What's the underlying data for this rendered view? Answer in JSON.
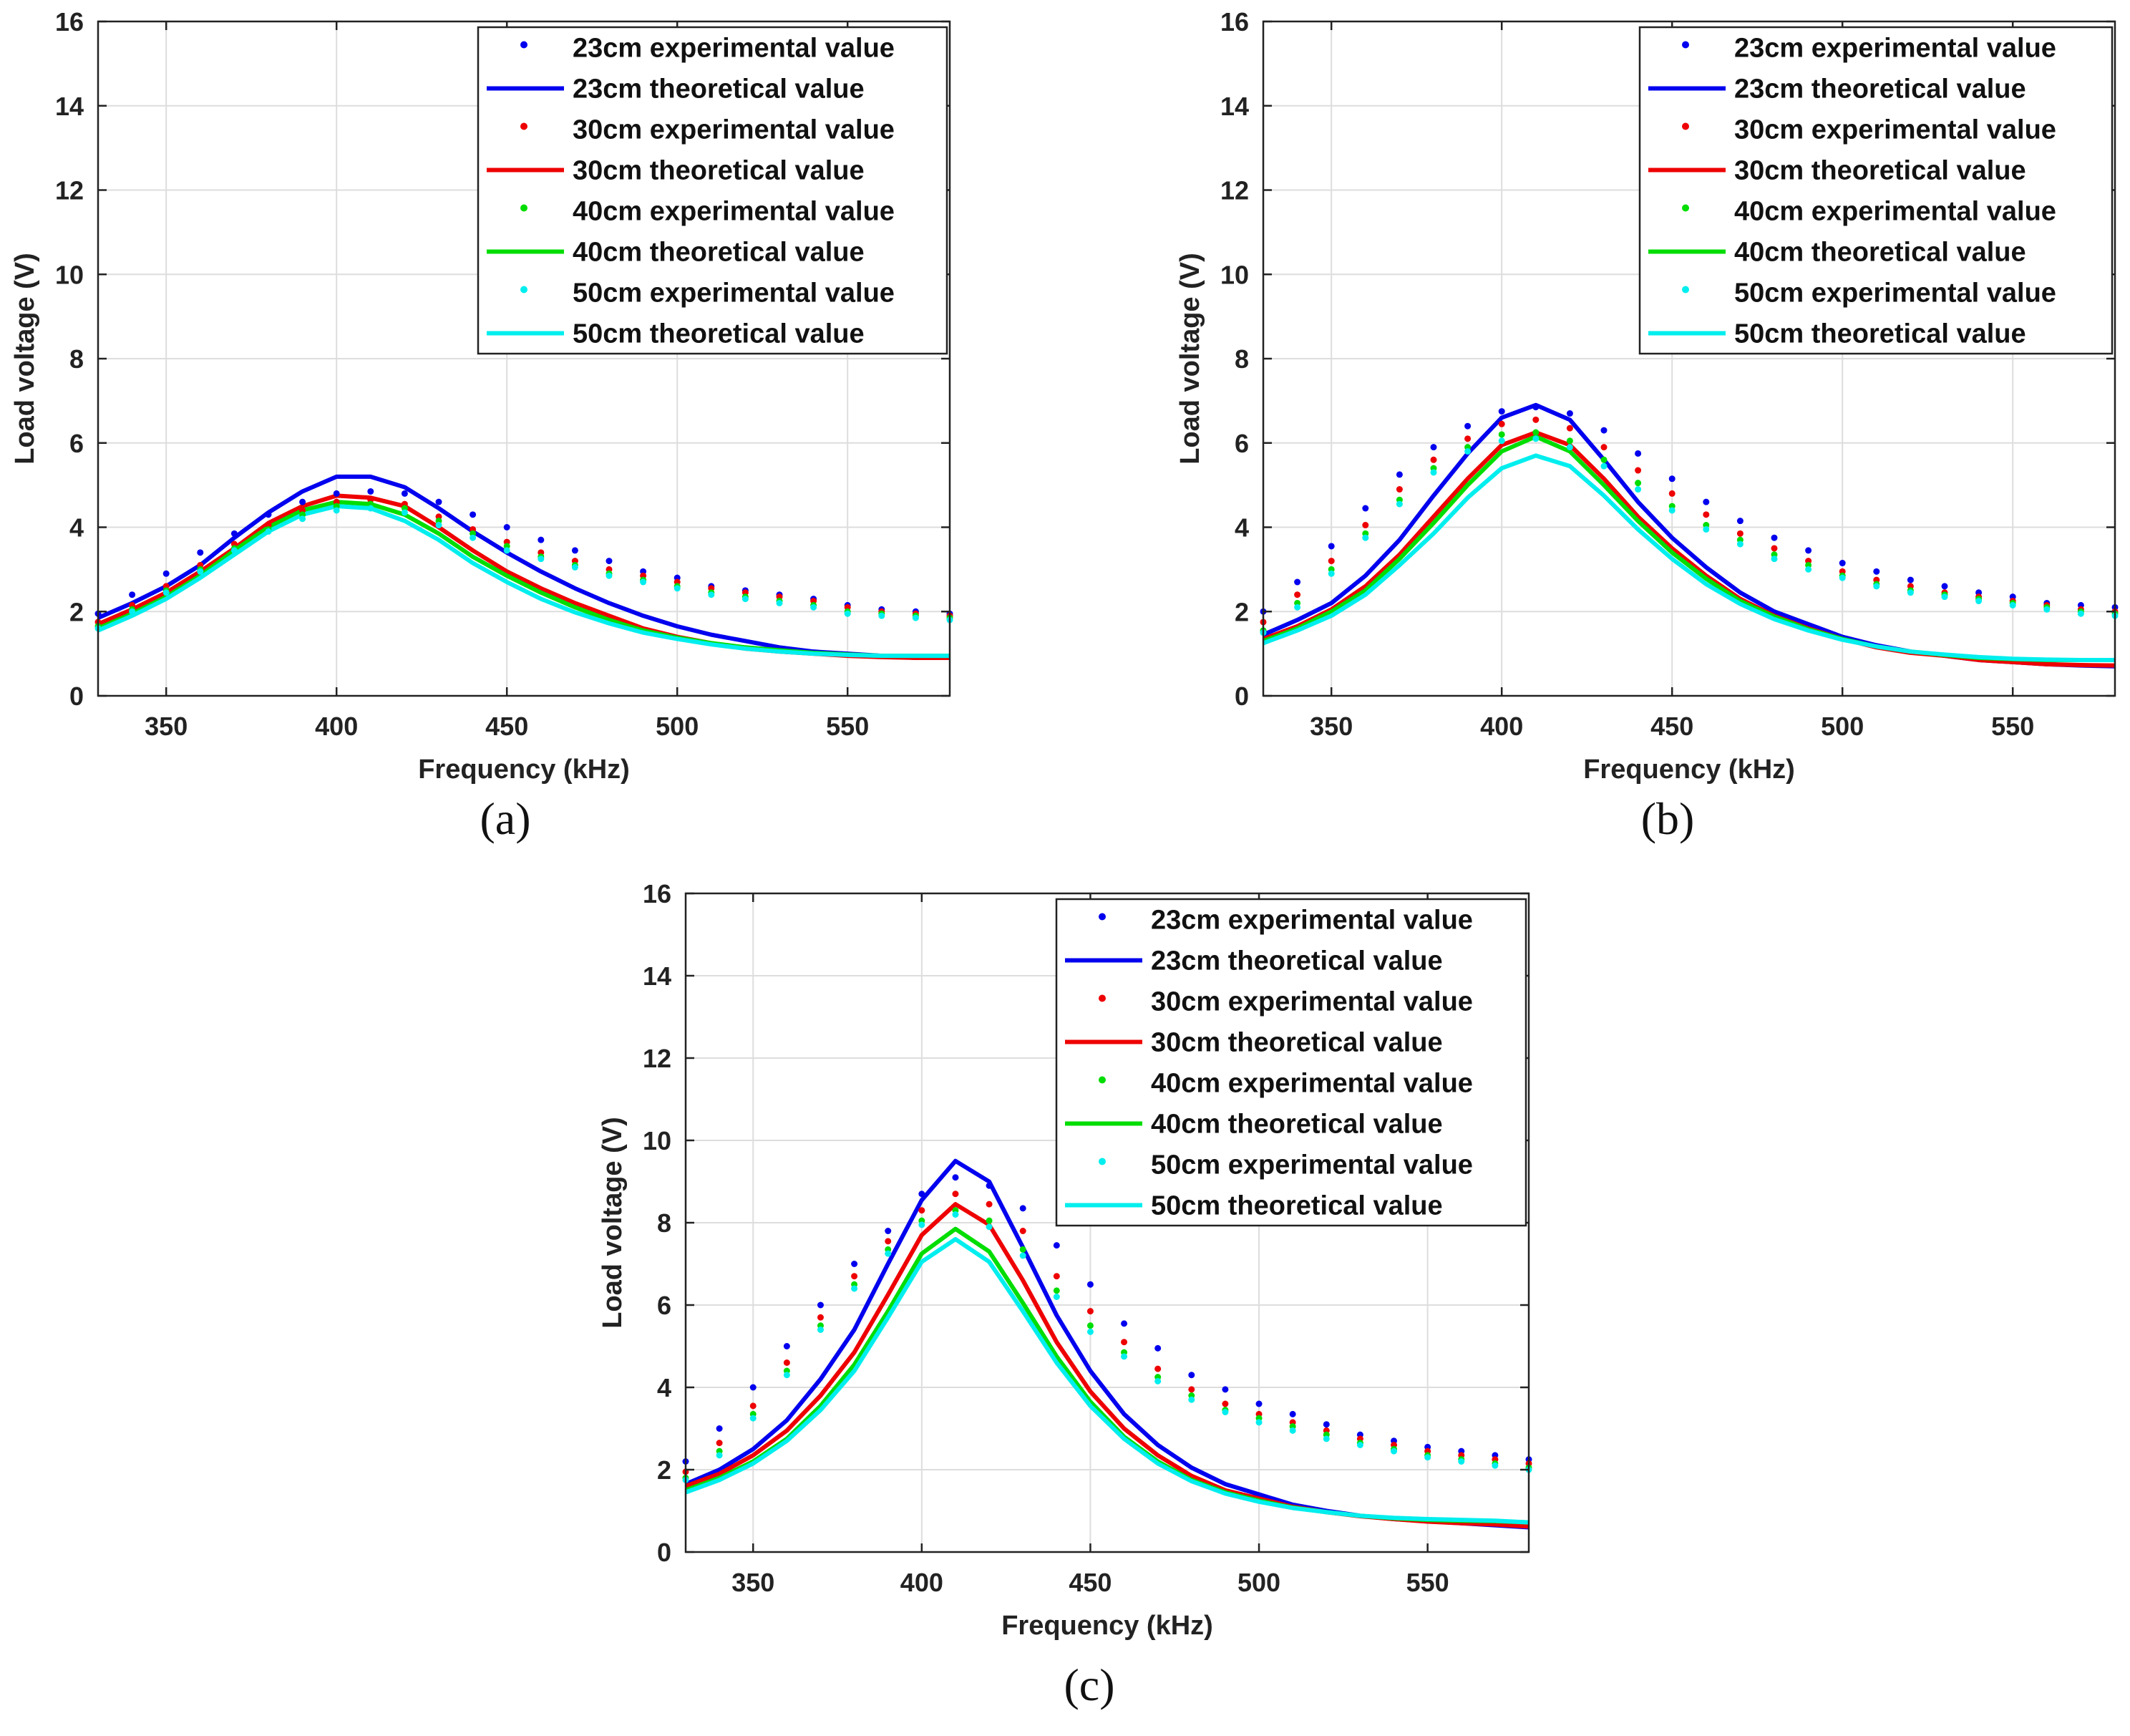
{
  "colors": {
    "23cm": "#0000ee",
    "30cm": "#ee0000",
    "40cm": "#00dd00",
    "50cm": "#00eeee",
    "grid": "#dddddd",
    "axis": "#222222"
  },
  "chart_data": [
    {
      "type": "line",
      "panel_label": "(a)",
      "xlabel": "Frequency (kHz)",
      "ylabel": "Load voltage (V)",
      "xlim": [
        330,
        580
      ],
      "ylim": [
        0,
        16
      ],
      "xticks": [
        "350",
        "400",
        "450",
        "500",
        "550"
      ],
      "yticks": [
        "0",
        "2",
        "4",
        "6",
        "8",
        "10",
        "12",
        "14",
        "16"
      ],
      "grid": true,
      "legend_position": "top-right",
      "legend": [
        "23cm experimental value",
        "23cm theoretical value",
        "30cm experimental value",
        "30cm theoretical value",
        "40cm experimental value",
        "40cm theoretical value",
        "50cm experimental value",
        "50cm theoretical value"
      ],
      "x": [
        330,
        340,
        350,
        360,
        370,
        380,
        390,
        400,
        410,
        420,
        430,
        440,
        450,
        460,
        470,
        480,
        490,
        500,
        510,
        520,
        530,
        540,
        550,
        560,
        570,
        580
      ],
      "series": [
        {
          "name": "23cm experimental value",
          "kind": "points",
          "color_key": "23cm",
          "values": [
            1.95,
            2.4,
            2.9,
            3.4,
            3.85,
            4.3,
            4.6,
            4.8,
            4.85,
            4.8,
            4.6,
            4.3,
            4.0,
            3.7,
            3.45,
            3.2,
            2.95,
            2.8,
            2.6,
            2.5,
            2.4,
            2.3,
            2.15,
            2.05,
            2.0,
            1.95
          ]
        },
        {
          "name": "23cm theoretical value",
          "kind": "line",
          "color_key": "23cm",
          "values": [
            1.85,
            2.2,
            2.6,
            3.1,
            3.75,
            4.35,
            4.85,
            5.2,
            5.2,
            4.95,
            4.45,
            3.9,
            3.4,
            2.95,
            2.55,
            2.2,
            1.9,
            1.65,
            1.45,
            1.3,
            1.15,
            1.05,
            1.0,
            0.95,
            0.9,
            0.9
          ]
        },
        {
          "name": "30cm experimental value",
          "kind": "points",
          "color_key": "30cm",
          "values": [
            1.75,
            2.15,
            2.6,
            3.1,
            3.6,
            4.05,
            4.4,
            4.6,
            4.65,
            4.55,
            4.25,
            3.95,
            3.65,
            3.4,
            3.2,
            3.0,
            2.85,
            2.7,
            2.55,
            2.45,
            2.35,
            2.25,
            2.1,
            2.0,
            1.95,
            1.9
          ]
        },
        {
          "name": "30cm theoretical value",
          "kind": "line",
          "color_key": "30cm",
          "values": [
            1.7,
            2.05,
            2.45,
            2.95,
            3.5,
            4.1,
            4.5,
            4.75,
            4.7,
            4.5,
            4.0,
            3.45,
            2.95,
            2.55,
            2.2,
            1.9,
            1.6,
            1.4,
            1.25,
            1.12,
            1.05,
            1.0,
            0.95,
            0.92,
            0.9,
            0.9
          ]
        },
        {
          "name": "40cm experimental value",
          "kind": "points",
          "color_key": "40cm",
          "values": [
            1.65,
            2.05,
            2.5,
            3.0,
            3.5,
            3.95,
            4.3,
            4.5,
            4.55,
            4.45,
            4.15,
            3.85,
            3.55,
            3.3,
            3.1,
            2.9,
            2.75,
            2.6,
            2.45,
            2.35,
            2.25,
            2.15,
            2.0,
            1.95,
            1.9,
            1.85
          ]
        },
        {
          "name": "40cm theoretical value",
          "kind": "line",
          "color_key": "40cm",
          "values": [
            1.6,
            1.95,
            2.35,
            2.85,
            3.45,
            4.0,
            4.4,
            4.6,
            4.55,
            4.3,
            3.85,
            3.3,
            2.85,
            2.45,
            2.1,
            1.8,
            1.55,
            1.38,
            1.25,
            1.15,
            1.08,
            1.02,
            0.98,
            0.95,
            0.95,
            0.95
          ]
        },
        {
          "name": "50cm experimental value",
          "kind": "points",
          "color_key": "50cm",
          "values": [
            1.6,
            2.0,
            2.45,
            2.95,
            3.45,
            3.9,
            4.2,
            4.4,
            4.45,
            4.35,
            4.05,
            3.75,
            3.45,
            3.25,
            3.05,
            2.85,
            2.7,
            2.55,
            2.4,
            2.3,
            2.2,
            2.1,
            1.95,
            1.9,
            1.85,
            1.8
          ]
        },
        {
          "name": "50cm theoretical value",
          "kind": "line",
          "color_key": "50cm",
          "values": [
            1.55,
            1.9,
            2.3,
            2.8,
            3.35,
            3.9,
            4.3,
            4.5,
            4.45,
            4.15,
            3.7,
            3.15,
            2.7,
            2.3,
            1.98,
            1.72,
            1.5,
            1.35,
            1.22,
            1.12,
            1.05,
            1.0,
            0.97,
            0.95,
            0.95,
            0.95
          ]
        }
      ]
    },
    {
      "type": "line",
      "panel_label": "(b)",
      "xlabel": "Frequency (kHz)",
      "ylabel": "Load voltage (V)",
      "xlim": [
        330,
        580
      ],
      "ylim": [
        0,
        16
      ],
      "xticks": [
        "350",
        "400",
        "450",
        "500",
        "550"
      ],
      "yticks": [
        "0",
        "2",
        "4",
        "6",
        "8",
        "10",
        "12",
        "14",
        "16"
      ],
      "grid": true,
      "legend_position": "top-right",
      "legend": [
        "23cm experimental value",
        "23cm theoretical value",
        "30cm experimental value",
        "30cm theoretical value",
        "40cm experimental value",
        "40cm theoretical value",
        "50cm experimental value",
        "50cm theoretical value"
      ],
      "x": [
        330,
        340,
        350,
        360,
        370,
        380,
        390,
        400,
        410,
        420,
        430,
        440,
        450,
        460,
        470,
        480,
        490,
        500,
        510,
        520,
        530,
        540,
        550,
        560,
        570,
        580
      ],
      "series": [
        {
          "name": "23cm experimental value",
          "kind": "points",
          "color_key": "23cm",
          "values": [
            2.0,
            2.7,
            3.55,
            4.45,
            5.25,
            5.9,
            6.4,
            6.75,
            6.85,
            6.7,
            6.3,
            5.75,
            5.15,
            4.6,
            4.15,
            3.75,
            3.45,
            3.15,
            2.95,
            2.75,
            2.6,
            2.45,
            2.35,
            2.2,
            2.15,
            2.1
          ]
        },
        {
          "name": "23cm theoretical value",
          "kind": "line",
          "color_key": "23cm",
          "values": [
            1.45,
            1.8,
            2.2,
            2.85,
            3.7,
            4.75,
            5.75,
            6.6,
            6.9,
            6.55,
            5.6,
            4.6,
            3.75,
            3.05,
            2.45,
            2.0,
            1.7,
            1.4,
            1.2,
            1.05,
            0.95,
            0.85,
            0.8,
            0.75,
            0.72,
            0.7
          ]
        },
        {
          "name": "30cm experimental value",
          "kind": "points",
          "color_key": "30cm",
          "values": [
            1.75,
            2.4,
            3.2,
            4.05,
            4.9,
            5.6,
            6.1,
            6.45,
            6.55,
            6.35,
            5.9,
            5.35,
            4.8,
            4.3,
            3.85,
            3.5,
            3.2,
            2.95,
            2.75,
            2.6,
            2.45,
            2.35,
            2.25,
            2.15,
            2.05,
            2.0
          ]
        },
        {
          "name": "30cm theoretical value",
          "kind": "line",
          "color_key": "30cm",
          "values": [
            1.35,
            1.65,
            2.05,
            2.6,
            3.35,
            4.25,
            5.15,
            5.95,
            6.25,
            5.95,
            5.15,
            4.25,
            3.5,
            2.85,
            2.3,
            1.9,
            1.6,
            1.35,
            1.15,
            1.02,
            0.95,
            0.85,
            0.8,
            0.75,
            0.73,
            0.72
          ]
        },
        {
          "name": "40cm experimental value",
          "kind": "points",
          "color_key": "40cm",
          "values": [
            1.55,
            2.2,
            3.0,
            3.85,
            4.65,
            5.4,
            5.9,
            6.2,
            6.25,
            6.05,
            5.6,
            5.05,
            4.5,
            4.05,
            3.7,
            3.35,
            3.1,
            2.85,
            2.65,
            2.5,
            2.4,
            2.3,
            2.2,
            2.1,
            2.0,
            1.95
          ]
        },
        {
          "name": "40cm theoretical value",
          "kind": "line",
          "color_key": "40cm",
          "values": [
            1.3,
            1.6,
            2.0,
            2.5,
            3.25,
            4.1,
            5.0,
            5.8,
            6.15,
            5.8,
            5.0,
            4.15,
            3.4,
            2.78,
            2.25,
            1.88,
            1.58,
            1.35,
            1.17,
            1.05,
            0.97,
            0.9,
            0.87,
            0.85,
            0.85,
            0.85
          ]
        },
        {
          "name": "50cm experimental value",
          "kind": "points",
          "color_key": "50cm",
          "values": [
            1.5,
            2.1,
            2.9,
            3.75,
            4.55,
            5.3,
            5.8,
            6.05,
            6.1,
            5.9,
            5.45,
            4.9,
            4.4,
            3.95,
            3.6,
            3.25,
            3.0,
            2.8,
            2.6,
            2.45,
            2.35,
            2.25,
            2.15,
            2.05,
            1.95,
            1.9
          ]
        },
        {
          "name": "50cm theoretical value",
          "kind": "line",
          "color_key": "50cm",
          "values": [
            1.25,
            1.55,
            1.9,
            2.4,
            3.1,
            3.85,
            4.7,
            5.4,
            5.7,
            5.45,
            4.75,
            3.95,
            3.25,
            2.65,
            2.18,
            1.82,
            1.55,
            1.33,
            1.17,
            1.05,
            0.98,
            0.92,
            0.88,
            0.86,
            0.85,
            0.85
          ]
        }
      ]
    },
    {
      "type": "line",
      "panel_label": "(c)",
      "xlabel": "Frequency (kHz)",
      "ylabel": "Load voltage (V)",
      "xlim": [
        330,
        580
      ],
      "ylim": [
        0,
        16
      ],
      "xticks": [
        "350",
        "400",
        "450",
        "500",
        "550"
      ],
      "yticks": [
        "0",
        "2",
        "4",
        "6",
        "8",
        "10",
        "12",
        "14",
        "16"
      ],
      "grid": true,
      "legend_position": "top-right",
      "legend": [
        "23cm experimental value",
        "23cm theoretical value",
        "30cm experimental value",
        "30cm theoretical value",
        "40cm experimental value",
        "40cm theoretical value",
        "50cm experimental value",
        "50cm theoretical value"
      ],
      "x": [
        330,
        340,
        350,
        360,
        370,
        380,
        390,
        400,
        410,
        420,
        430,
        440,
        450,
        460,
        470,
        480,
        490,
        500,
        510,
        520,
        530,
        540,
        550,
        560,
        570,
        580
      ],
      "series": [
        {
          "name": "23cm experimental value",
          "kind": "points",
          "color_key": "23cm",
          "values": [
            2.2,
            3.0,
            4.0,
            5.0,
            6.0,
            7.0,
            7.8,
            8.7,
            9.1,
            8.9,
            8.35,
            7.45,
            6.5,
            5.55,
            4.95,
            4.3,
            3.95,
            3.6,
            3.35,
            3.1,
            2.85,
            2.7,
            2.55,
            2.45,
            2.35,
            2.25
          ]
        },
        {
          "name": "23cm theoretical value",
          "kind": "line",
          "color_key": "23cm",
          "values": [
            1.65,
            2.0,
            2.5,
            3.2,
            4.2,
            5.4,
            7.0,
            8.55,
            9.5,
            9.0,
            7.4,
            5.75,
            4.4,
            3.35,
            2.6,
            2.05,
            1.65,
            1.4,
            1.15,
            1.0,
            0.88,
            0.8,
            0.75,
            0.7,
            0.65,
            0.6
          ]
        },
        {
          "name": "30cm experimental value",
          "kind": "points",
          "color_key": "30cm",
          "values": [
            1.95,
            2.65,
            3.55,
            4.6,
            5.7,
            6.7,
            7.55,
            8.3,
            8.7,
            8.45,
            7.8,
            6.7,
            5.85,
            5.1,
            4.45,
            3.95,
            3.6,
            3.35,
            3.15,
            2.95,
            2.75,
            2.6,
            2.45,
            2.35,
            2.25,
            2.15
          ]
        },
        {
          "name": "30cm theoretical value",
          "kind": "line",
          "color_key": "30cm",
          "values": [
            1.6,
            1.9,
            2.35,
            2.95,
            3.8,
            4.85,
            6.25,
            7.7,
            8.45,
            7.95,
            6.6,
            5.1,
            3.9,
            3.0,
            2.35,
            1.85,
            1.5,
            1.3,
            1.1,
            0.97,
            0.87,
            0.8,
            0.74,
            0.7,
            0.67,
            0.62
          ]
        },
        {
          "name": "40cm experimental value",
          "kind": "points",
          "color_key": "40cm",
          "values": [
            1.8,
            2.45,
            3.35,
            4.4,
            5.5,
            6.5,
            7.35,
            8.05,
            8.3,
            8.05,
            7.35,
            6.35,
            5.5,
            4.85,
            4.25,
            3.8,
            3.45,
            3.25,
            3.05,
            2.85,
            2.65,
            2.5,
            2.35,
            2.25,
            2.15,
            2.05
          ]
        },
        {
          "name": "40cm theoretical value",
          "kind": "line",
          "color_key": "40cm",
          "values": [
            1.5,
            1.8,
            2.2,
            2.75,
            3.55,
            4.55,
            5.85,
            7.25,
            7.85,
            7.3,
            6.05,
            4.75,
            3.65,
            2.8,
            2.2,
            1.75,
            1.45,
            1.25,
            1.08,
            0.97,
            0.88,
            0.82,
            0.78,
            0.76,
            0.75,
            0.72
          ]
        },
        {
          "name": "50cm experimental value",
          "kind": "points",
          "color_key": "50cm",
          "values": [
            1.75,
            2.35,
            3.25,
            4.3,
            5.4,
            6.4,
            7.25,
            7.95,
            8.2,
            7.9,
            7.2,
            6.2,
            5.35,
            4.75,
            4.15,
            3.7,
            3.4,
            3.15,
            2.95,
            2.75,
            2.6,
            2.45,
            2.3,
            2.2,
            2.1,
            2.0
          ]
        },
        {
          "name": "50cm theoretical value",
          "kind": "line",
          "color_key": "50cm",
          "values": [
            1.45,
            1.75,
            2.15,
            2.7,
            3.45,
            4.4,
            5.7,
            7.05,
            7.6,
            7.05,
            5.85,
            4.6,
            3.55,
            2.75,
            2.15,
            1.72,
            1.42,
            1.22,
            1.07,
            0.97,
            0.88,
            0.83,
            0.8,
            0.78,
            0.76,
            0.72
          ]
        }
      ]
    }
  ]
}
